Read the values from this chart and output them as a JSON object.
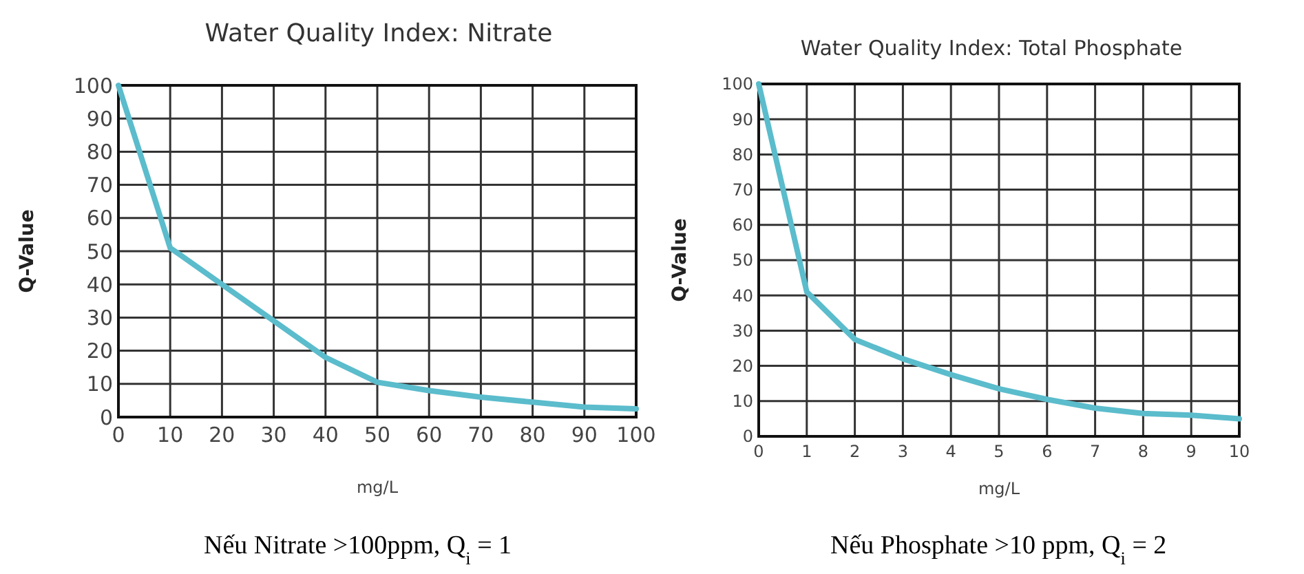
{
  "chart_data": [
    {
      "type": "line",
      "title": "Water Quality Index: Nitrate",
      "xlabel": "mg/L",
      "ylabel": "Q-Value",
      "x": [
        0,
        10,
        20,
        30,
        40,
        50,
        60,
        70,
        80,
        90,
        100
      ],
      "series": [
        {
          "color": "#5bbccc",
          "values": [
            100,
            51,
            40,
            29,
            18,
            10.5,
            8,
            6,
            4.5,
            3,
            2.5
          ]
        }
      ],
      "xlim": [
        0,
        100
      ],
      "xticks": [
        0,
        10,
        20,
        30,
        40,
        50,
        60,
        70,
        80,
        90,
        100
      ],
      "ylim": [
        0,
        100
      ],
      "yticks": [
        0,
        10,
        20,
        30,
        40,
        50,
        60,
        70,
        80,
        90,
        100
      ],
      "grid": true,
      "marker": "none",
      "line_style": "solid",
      "annotations": [
        "Nếu Nitrate >100ppm, Q$_{i}$ = 1"
      ]
    },
    {
      "type": "line",
      "title": "Water Quality Index: Total Phosphate",
      "xlabel": "mg/L",
      "ylabel": "Q-Value",
      "x": [
        0,
        1,
        2,
        3,
        4,
        5,
        6,
        7,
        8,
        9,
        10
      ],
      "series": [
        {
          "color": "#5bbccc",
          "values": [
            100,
            41,
            27.5,
            22,
            17.5,
            13.5,
            10.5,
            8,
            6.5,
            6,
            5
          ]
        }
      ],
      "xlim": [
        0,
        10
      ],
      "xticks": [
        0,
        1,
        2,
        3,
        4,
        5,
        6,
        7,
        8,
        9,
        10
      ],
      "ylim": [
        0,
        100
      ],
      "yticks": [
        0,
        10,
        20,
        30,
        40,
        50,
        60,
        70,
        80,
        90,
        100
      ],
      "grid": true,
      "marker": "none",
      "line_style": "solid",
      "annotations": [
        "Nếu Phosphate >10 ppm, Q$_{i}$ = 2"
      ]
    }
  ]
}
